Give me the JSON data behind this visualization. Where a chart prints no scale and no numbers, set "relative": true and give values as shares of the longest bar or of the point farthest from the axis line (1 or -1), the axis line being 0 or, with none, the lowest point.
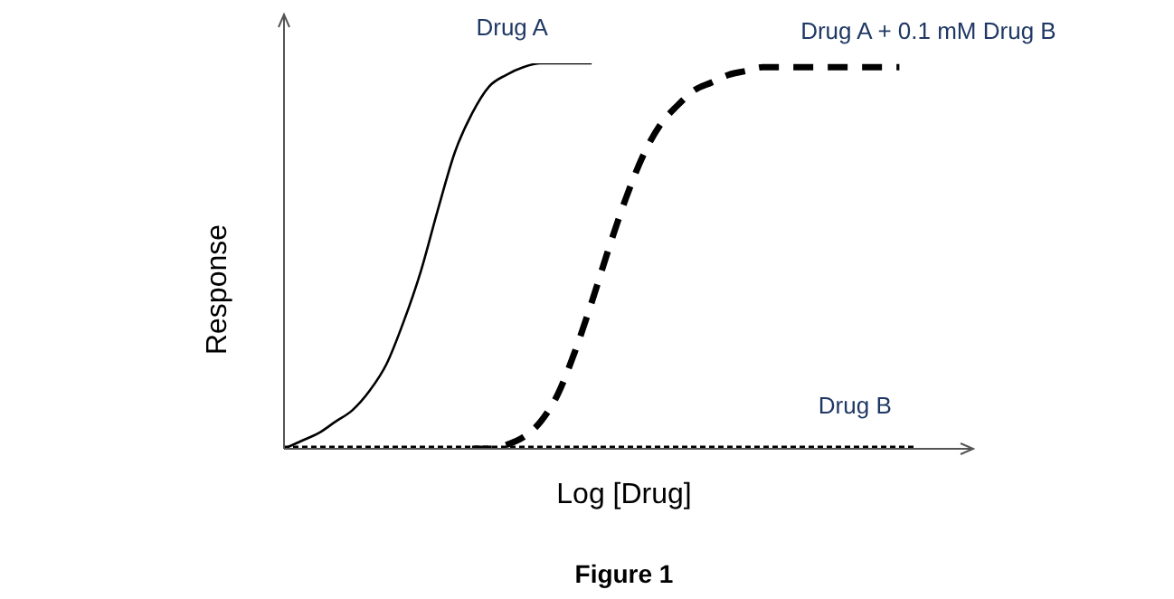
{
  "chart_data": {
    "type": "line",
    "relative": true,
    "tick_labels": false,
    "xlabel": "Log [Drug]",
    "ylabel": "Response",
    "annotations": [
      "Figure 1"
    ],
    "categories": [
      null,
      null,
      null,
      null,
      null,
      null,
      null,
      null,
      null,
      null,
      null,
      null,
      null,
      null,
      null,
      null,
      null,
      null,
      null,
      null,
      null,
      null,
      null,
      null,
      null,
      null,
      null,
      null,
      null,
      null,
      null,
      null,
      null,
      null,
      null,
      null,
      null,
      null,
      null,
      null,
      null
    ],
    "series": [
      {
        "name": "Drug A",
        "color": "#000000",
        "line_style": "solid",
        "values": [
          0,
          0.02,
          0.04,
          0.07,
          0.1,
          0.15,
          0.22,
          0.33,
          0.46,
          0.62,
          0.77,
          0.87,
          0.94,
          0.97,
          0.99,
          1,
          1,
          1,
          1,
          null,
          null,
          null,
          null,
          null,
          null,
          null,
          null,
          null,
          null,
          null,
          null,
          null,
          null,
          null,
          null,
          null,
          null,
          null,
          null,
          null,
          null
        ]
      },
      {
        "name": "Drug A + 0.1 mM Drug B",
        "color": "#000000",
        "line_style": "dashed",
        "values": [
          null,
          null,
          null,
          null,
          null,
          null,
          null,
          null,
          null,
          null,
          null,
          0,
          0,
          0.01,
          0.03,
          0.07,
          0.14,
          0.25,
          0.38,
          0.52,
          0.65,
          0.76,
          0.84,
          0.89,
          0.93,
          0.95,
          0.97,
          0.98,
          0.99,
          0.99,
          0.99,
          0.99,
          0.99,
          0.99,
          0.99,
          0.99,
          0.99,
          null,
          null,
          null,
          null
        ]
      },
      {
        "name": "Drug B",
        "color": "#000000",
        "line_style": "dotted",
        "values": [
          0,
          0,
          0,
          0,
          0,
          0,
          0,
          0,
          0,
          0,
          0,
          0,
          0,
          0,
          0,
          0,
          0,
          0,
          0,
          0,
          0,
          0,
          0,
          0,
          0,
          0,
          0,
          0,
          0,
          0,
          0,
          0,
          0,
          0,
          0,
          0,
          0,
          0,
          null,
          null,
          null
        ]
      }
    ]
  }
}
